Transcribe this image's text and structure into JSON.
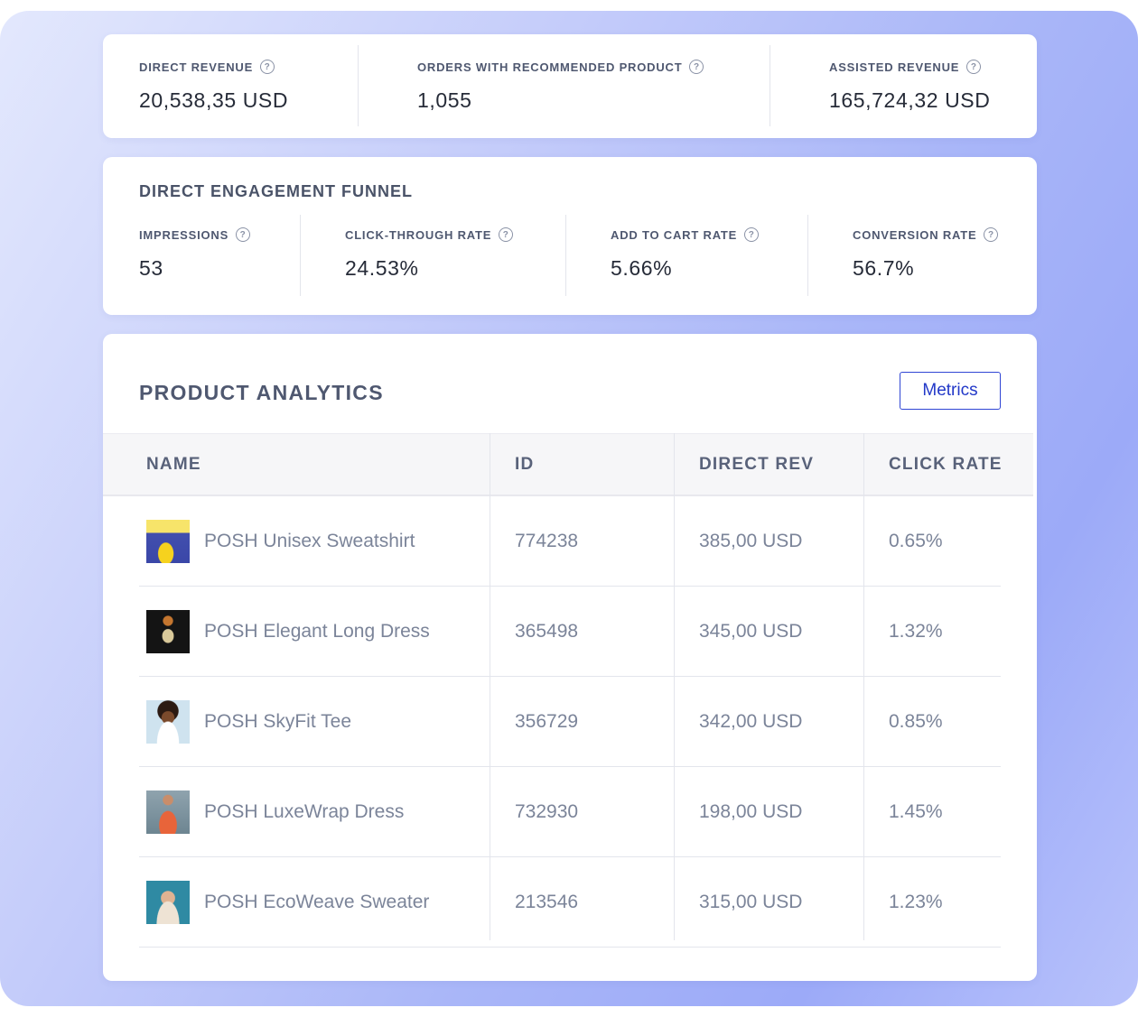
{
  "summary": [
    {
      "label": "DIRECT REVENUE",
      "value": "20,538,35 USD",
      "icon": "help-circle-icon"
    },
    {
      "label": "ORDERS WITH RECOMMENDED PRODUCT",
      "value": "1,055",
      "icon": "help-circle-icon"
    },
    {
      "label": "ASSISTED REVENUE",
      "value": "165,724,32 USD",
      "icon": "help-circle-icon"
    }
  ],
  "funnel": {
    "title": "DIRECT ENGAGEMENT FUNNEL",
    "metrics": [
      {
        "label": "IMPRESSIONS",
        "value": "53"
      },
      {
        "label": "CLICK-THROUGH RATE",
        "value": "24.53%"
      },
      {
        "label": "ADD TO CART RATE",
        "value": "5.66%"
      },
      {
        "label": "CONVERSION RATE",
        "value": "56.7%"
      }
    ]
  },
  "products": {
    "title": "PRODUCT ANALYTICS",
    "metrics_button": "Metrics",
    "columns": [
      "NAME",
      "ID",
      "DIRECT REV",
      "CLICK RATE"
    ],
    "rows": [
      {
        "name": "POSH Unisex Sweatshirt",
        "id": "774238",
        "rev": "385,00 USD",
        "rate": "0.65%"
      },
      {
        "name": "POSH Elegant Long Dress",
        "id": "365498",
        "rev": "345,00 USD",
        "rate": "1.32%"
      },
      {
        "name": "POSH SkyFit Tee",
        "id": "356729",
        "rev": "342,00 USD",
        "rate": "0.85%"
      },
      {
        "name": "POSH LuxeWrap Dress",
        "id": "732930",
        "rev": "198,00 USD",
        "rate": "1.45%"
      },
      {
        "name": "POSH EcoWeave Sweater",
        "id": "213546",
        "rev": "315,00 USD",
        "rate": "1.23%"
      }
    ]
  },
  "colors": {
    "accent": "#2238c8",
    "text": "#262b38",
    "muted": "#7b8499"
  }
}
